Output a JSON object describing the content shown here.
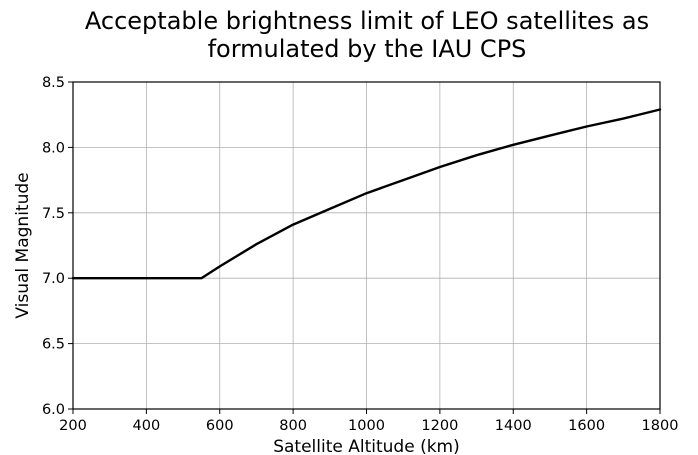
{
  "chart_data": {
    "type": "line",
    "title_lines": [
      "Acceptable brightness limit of LEO satellites as",
      "formulated by the IAU CPS"
    ],
    "xlabel": "Satellite Altitude (km)",
    "ylabel": "Visual Magnitude",
    "xlim": [
      200,
      1800
    ],
    "ylim": [
      6.0,
      8.5
    ],
    "x_ticks": [
      200,
      400,
      600,
      800,
      1000,
      1200,
      1400,
      1600,
      1800
    ],
    "x_tick_labels": [
      "200",
      "400",
      "600",
      "800",
      "1000",
      "1200",
      "1400",
      "1600",
      "1800"
    ],
    "y_ticks": [
      6.0,
      6.5,
      7.0,
      7.5,
      8.0,
      8.5
    ],
    "y_tick_labels": [
      "6.0",
      "6.5",
      "7.0",
      "7.5",
      "8.0",
      "8.5"
    ],
    "grid": true,
    "series": [
      {
        "color": "#000000",
        "x": [
          200,
          550,
          600,
          700,
          800,
          900,
          1000,
          1100,
          1200,
          1300,
          1400,
          1500,
          1600,
          1700,
          1800
        ],
        "y": [
          7.0,
          7.0,
          7.09,
          7.26,
          7.41,
          7.53,
          7.65,
          7.75,
          7.85,
          7.94,
          8.02,
          8.09,
          8.16,
          8.22,
          8.29
        ]
      }
    ]
  }
}
